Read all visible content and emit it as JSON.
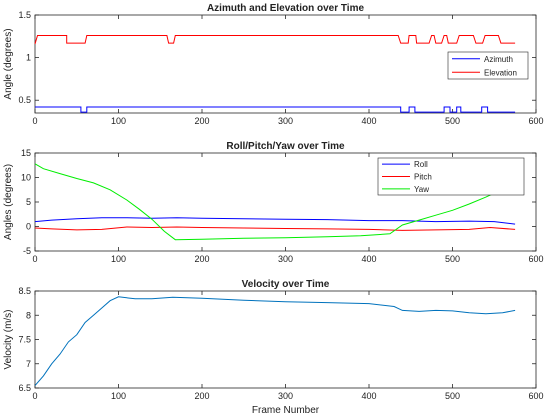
{
  "chart_data": [
    {
      "type": "line",
      "title": "Azimuth and Elevation over Time",
      "xlabel": "",
      "ylabel": "Angle (degrees)",
      "xlim": [
        0,
        600
      ],
      "ylim": [
        0.35,
        1.5
      ],
      "xticks": [
        0,
        100,
        200,
        300,
        400,
        500,
        600
      ],
      "yticks": [
        0.5,
        1,
        1.5
      ],
      "grid": false,
      "legend": "right",
      "series": [
        {
          "name": "Azimuth",
          "color": "#0000ff",
          "points": [
            [
              0,
              0.42
            ],
            [
              55,
              0.42
            ],
            [
              55,
              0.36
            ],
            [
              62,
              0.36
            ],
            [
              62,
              0.42
            ],
            [
              438,
              0.42
            ],
            [
              438,
              0.36
            ],
            [
              448,
              0.36
            ],
            [
              448,
              0.42
            ],
            [
              455,
              0.42
            ],
            [
              455,
              0.36
            ],
            [
              490,
              0.36
            ],
            [
              490,
              0.42
            ],
            [
              497,
              0.42
            ],
            [
              497,
              0.36
            ],
            [
              505,
              0.36
            ],
            [
              505,
              0.42
            ],
            [
              510,
              0.42
            ],
            [
              510,
              0.36
            ],
            [
              535,
              0.36
            ],
            [
              535,
              0.42
            ],
            [
              542,
              0.42
            ],
            [
              542,
              0.36
            ],
            [
              575,
              0.36
            ]
          ]
        },
        {
          "name": "Elevation",
          "color": "#ff0000",
          "points": [
            [
              0,
              1.16
            ],
            [
              3,
              1.26
            ],
            [
              38,
              1.26
            ],
            [
              38,
              1.17
            ],
            [
              60,
              1.17
            ],
            [
              62,
              1.26
            ],
            [
              158,
              1.26
            ],
            [
              160,
              1.17
            ],
            [
              166,
              1.17
            ],
            [
              168,
              1.26
            ],
            [
              435,
              1.26
            ],
            [
              438,
              1.17
            ],
            [
              447,
              1.17
            ],
            [
              448,
              1.26
            ],
            [
              456,
              1.26
            ],
            [
              457,
              1.17
            ],
            [
              472,
              1.17
            ],
            [
              475,
              1.26
            ],
            [
              478,
              1.26
            ],
            [
              480,
              1.17
            ],
            [
              487,
              1.17
            ],
            [
              490,
              1.26
            ],
            [
              493,
              1.26
            ],
            [
              495,
              1.17
            ],
            [
              505,
              1.17
            ],
            [
              508,
              1.26
            ],
            [
              525,
              1.26
            ],
            [
              528,
              1.17
            ],
            [
              536,
              1.17
            ],
            [
              539,
              1.26
            ],
            [
              555,
              1.26
            ],
            [
              558,
              1.17
            ],
            [
              575,
              1.17
            ]
          ]
        }
      ]
    },
    {
      "type": "line",
      "title": "Roll/Pitch/Yaw over Time",
      "xlabel": "",
      "ylabel": "Angles (degrees)",
      "xlim": [
        0,
        600
      ],
      "ylim": [
        -5,
        15
      ],
      "xticks": [
        0,
        100,
        200,
        300,
        400,
        500,
        600
      ],
      "yticks": [
        -5,
        0,
        5,
        10,
        15
      ],
      "grid": false,
      "legend": "top-right",
      "series": [
        {
          "name": "Roll",
          "color": "#0000ff",
          "points": [
            [
              0,
              1.0
            ],
            [
              20,
              1.3
            ],
            [
              50,
              1.6
            ],
            [
              80,
              1.8
            ],
            [
              110,
              1.8
            ],
            [
              140,
              1.7
            ],
            [
              170,
              1.8
            ],
            [
              200,
              1.7
            ],
            [
              250,
              1.6
            ],
            [
              300,
              1.5
            ],
            [
              350,
              1.4
            ],
            [
              400,
              1.2
            ],
            [
              440,
              1.2
            ],
            [
              480,
              1.0
            ],
            [
              520,
              1.1
            ],
            [
              550,
              1.0
            ],
            [
              575,
              0.5
            ]
          ]
        },
        {
          "name": "Pitch",
          "color": "#ff0000",
          "points": [
            [
              0,
              -0.3
            ],
            [
              20,
              -0.5
            ],
            [
              50,
              -0.7
            ],
            [
              80,
              -0.6
            ],
            [
              110,
              -0.1
            ],
            [
              140,
              -0.2
            ],
            [
              170,
              -0.1
            ],
            [
              200,
              -0.2
            ],
            [
              250,
              -0.3
            ],
            [
              300,
              -0.4
            ],
            [
              350,
              -0.5
            ],
            [
              400,
              -0.6
            ],
            [
              440,
              -0.8
            ],
            [
              480,
              -0.7
            ],
            [
              520,
              -0.6
            ],
            [
              545,
              -0.2
            ],
            [
              575,
              -0.6
            ]
          ]
        },
        {
          "name": "Yaw",
          "color": "#00ee00",
          "points": [
            [
              0,
              12.8
            ],
            [
              10,
              11.8
            ],
            [
              30,
              10.8
            ],
            [
              50,
              9.8
            ],
            [
              70,
              8.9
            ],
            [
              90,
              7.5
            ],
            [
              110,
              5.4
            ],
            [
              125,
              3.5
            ],
            [
              140,
              1.5
            ],
            [
              155,
              -1.0
            ],
            [
              168,
              -2.7
            ],
            [
              200,
              -2.6
            ],
            [
              250,
              -2.4
            ],
            [
              300,
              -2.3
            ],
            [
              350,
              -2.1
            ],
            [
              390,
              -1.9
            ],
            [
              425,
              -1.5
            ],
            [
              440,
              0.3
            ],
            [
              460,
              1.3
            ],
            [
              480,
              2.3
            ],
            [
              500,
              3.3
            ],
            [
              520,
              4.6
            ],
            [
              540,
              6.0
            ],
            [
              560,
              7.6
            ],
            [
              575,
              8.8
            ]
          ]
        }
      ]
    },
    {
      "type": "line",
      "title": "Velocity over Time",
      "xlabel": "Frame Number",
      "ylabel": "Velocity (m/s)",
      "xlim": [
        0,
        600
      ],
      "ylim": [
        6.5,
        8.5
      ],
      "xticks": [
        0,
        100,
        200,
        300,
        400,
        500,
        600
      ],
      "yticks": [
        6.5,
        7,
        7.5,
        8,
        8.5
      ],
      "grid": false,
      "series": [
        {
          "name": "",
          "color": "#0072bd",
          "points": [
            [
              0,
              6.55
            ],
            [
              10,
              6.75
            ],
            [
              20,
              7.0
            ],
            [
              30,
              7.2
            ],
            [
              40,
              7.45
            ],
            [
              50,
              7.6
            ],
            [
              60,
              7.85
            ],
            [
              70,
              8.0
            ],
            [
              80,
              8.15
            ],
            [
              90,
              8.3
            ],
            [
              100,
              8.38
            ],
            [
              110,
              8.36
            ],
            [
              120,
              8.34
            ],
            [
              140,
              8.34
            ],
            [
              165,
              8.37
            ],
            [
              200,
              8.35
            ],
            [
              250,
              8.31
            ],
            [
              300,
              8.28
            ],
            [
              350,
              8.26
            ],
            [
              400,
              8.24
            ],
            [
              430,
              8.18
            ],
            [
              440,
              8.1
            ],
            [
              460,
              8.08
            ],
            [
              480,
              8.1
            ],
            [
              500,
              8.09
            ],
            [
              520,
              8.05
            ],
            [
              540,
              8.03
            ],
            [
              560,
              8.05
            ],
            [
              575,
              8.1
            ]
          ]
        }
      ]
    }
  ]
}
